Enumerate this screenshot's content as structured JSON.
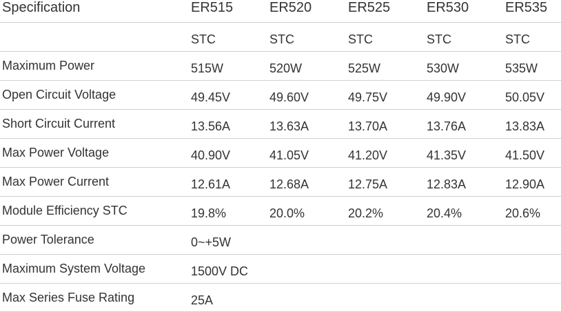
{
  "table": {
    "header": [
      "Specification",
      "ER515",
      "ER520",
      "ER525",
      "ER530",
      "ER535"
    ],
    "condition_row": [
      "STC",
      "STC",
      "STC",
      "STC",
      "STC"
    ],
    "rows": [
      [
        "Maximum Power",
        "515W",
        "520W",
        "525W",
        "530W",
        "535W"
      ],
      [
        "Open Circuit Voltage",
        "49.45V",
        "49.60V",
        "49.75V",
        "49.90V",
        "50.05V"
      ],
      [
        "Short Circuit Current",
        "13.56A",
        "13.63A",
        "13.70A",
        "13.76A",
        "13.83A"
      ],
      [
        "Max Power Voltage",
        "40.90V",
        "41.05V",
        "41.20V",
        "41.35V",
        "41.50V"
      ],
      [
        "Max Power Current",
        "12.61A",
        "12.68A",
        "12.75A",
        "12.83A",
        "12.90A"
      ],
      [
        "Module Efficiency STC",
        "19.8%",
        "20.0%",
        "20.2%",
        "20.4%",
        "20.6%"
      ],
      [
        "Power Tolerance",
        "0~+5W"
      ],
      [
        "Maximum System Voltage",
        "1500V DC"
      ],
      [
        "Max Series Fuse Rating",
        "25A"
      ]
    ]
  }
}
